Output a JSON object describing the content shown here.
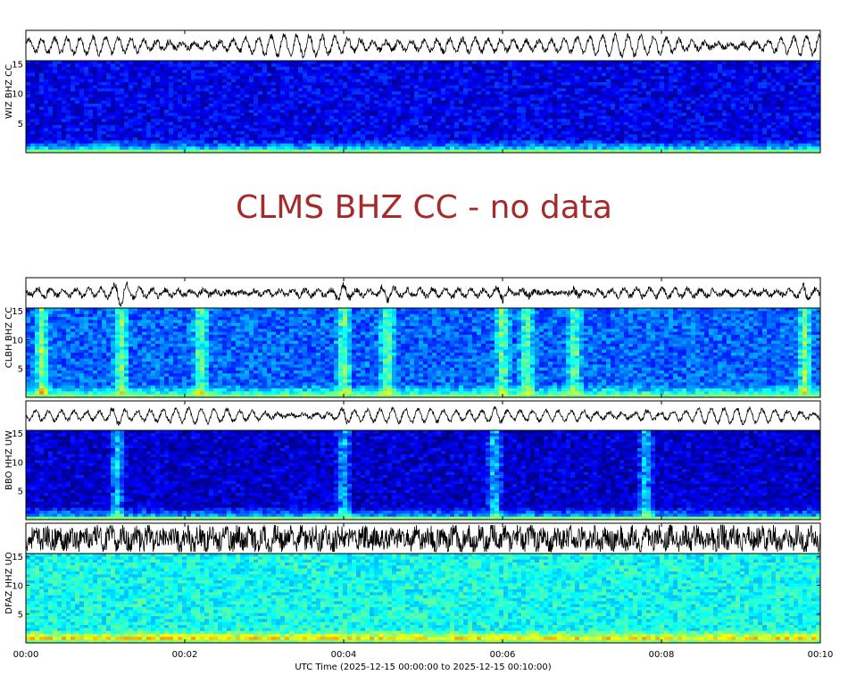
{
  "chart_data": {
    "type": "heatmap",
    "xlabel": "UTC Time (2025-12-15 00:00:00 to 2025-12-15 00:10:00)",
    "x_ticks": [
      "00:00",
      "00:02",
      "00:04",
      "00:06",
      "00:08",
      "00:10"
    ],
    "x_range_minutes": [
      0,
      10
    ],
    "y_ticks": [
      5,
      10,
      15
    ],
    "panels": [
      {
        "station": "WIZ BHZ CC",
        "status": "data",
        "waveform_amplitude": 0.8,
        "waveform_noise": 0.12,
        "spectrogram_level": 0.14,
        "low_band_level": 0.55,
        "events_minutes": []
      },
      {
        "station": "CLMS BHZ CC",
        "status": "no data",
        "message": "CLMS BHZ CC - no data"
      },
      {
        "station": "CLBH BHZ CC",
        "status": "data",
        "waveform_amplitude": 0.35,
        "waveform_noise": 0.15,
        "spectrogram_level": 0.3,
        "low_band_level": 0.45,
        "events_minutes": [
          0.2,
          1.2,
          2.2,
          4.0,
          4.55,
          6.0,
          6.3,
          6.9,
          9.8
        ]
      },
      {
        "station": "BBO HHZ UW",
        "status": "data",
        "waveform_amplitude": 0.6,
        "waveform_noise": 0.1,
        "spectrogram_level": 0.1,
        "low_band_level": 0.5,
        "events_minutes": [
          1.15,
          4.0,
          5.9,
          7.8
        ]
      },
      {
        "station": "DFAZ HHZ UO",
        "status": "data",
        "waveform_amplitude": 0.55,
        "waveform_noise": 0.55,
        "spectrogram_level": 0.52,
        "low_band_level": 0.65,
        "events_minutes": []
      }
    ],
    "colormap": [
      "#00007f",
      "#0000ff",
      "#007fff",
      "#00ffff",
      "#7fff7f",
      "#ffff00",
      "#ff7f00"
    ]
  }
}
